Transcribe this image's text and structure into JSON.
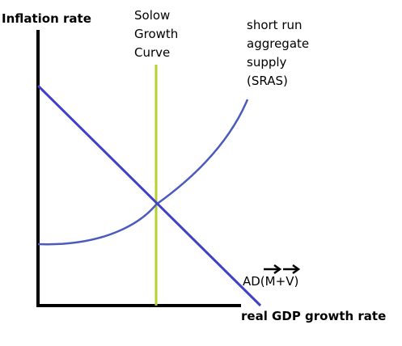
{
  "diagram": {
    "y_axis_label": "Inflation rate",
    "x_axis_label": "real GDP growth rate",
    "solow_label": [
      "Solow",
      "Growth",
      "Curve"
    ],
    "sras_label": [
      "short run",
      "aggregate",
      "supply",
      "(SRAS)"
    ],
    "ad_label": {
      "prefix": "AD(",
      "m": "M",
      "plus": "+",
      "v": "V",
      "suffix": ")"
    }
  },
  "colors": {
    "axis": "#000000",
    "ad_curve": "#4040c8",
    "sras_curve": "#4a5bbd",
    "solow_line": "#b5d22c",
    "text": "#000000"
  }
}
